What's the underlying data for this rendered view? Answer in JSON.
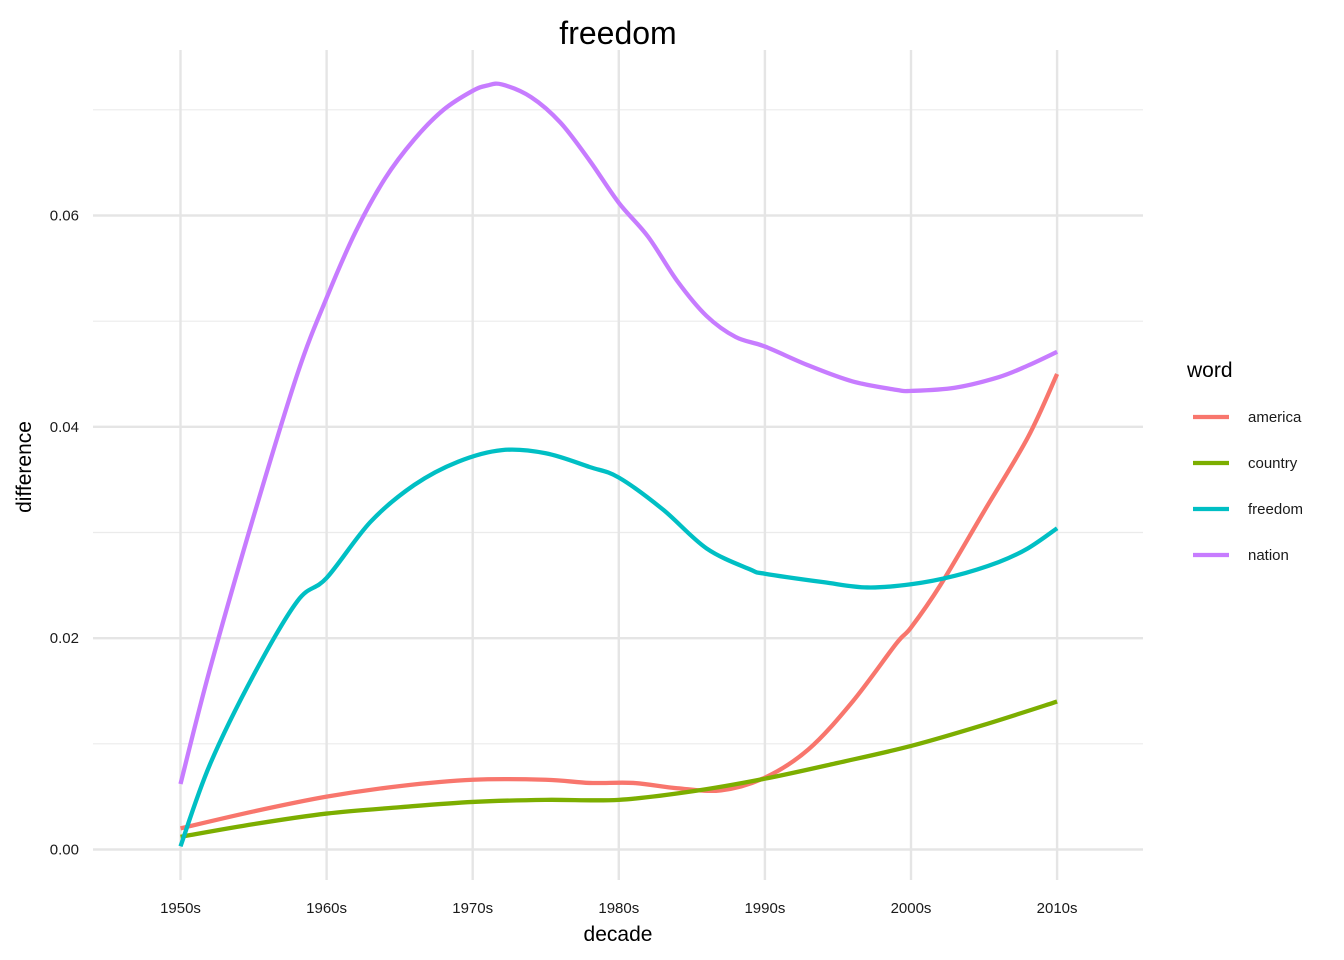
{
  "chart_data": {
    "type": "line",
    "title": "freedom",
    "xlabel": "decade",
    "ylabel": "difference",
    "categories": [
      "1950s",
      "1960s",
      "1970s",
      "1980s",
      "1990s",
      "2000s",
      "2010s"
    ],
    "y_ticks": [
      "0.00",
      "0.02",
      "0.04",
      "0.06"
    ],
    "ylim": [
      -0.0045,
      0.0765
    ],
    "grid": true,
    "legend": {
      "title": "word",
      "position": "right"
    },
    "series": [
      {
        "name": "america",
        "color": "#F8766D",
        "points": [
          [
            1950,
            0.002
          ],
          [
            1955,
            0.0036
          ],
          [
            1960,
            0.005
          ],
          [
            1965,
            0.006
          ],
          [
            1970,
            0.0066
          ],
          [
            1975,
            0.0066
          ],
          [
            1978,
            0.0063
          ],
          [
            1981,
            0.0063
          ],
          [
            1984,
            0.0058
          ],
          [
            1987,
            0.0056
          ],
          [
            1990,
            0.0068
          ],
          [
            1993,
            0.0095
          ],
          [
            1996,
            0.014
          ],
          [
            1999,
            0.0195
          ],
          [
            2000,
            0.021
          ],
          [
            2002,
            0.025
          ],
          [
            2005,
            0.032
          ],
          [
            2008,
            0.039
          ],
          [
            2010,
            0.045
          ]
        ]
      },
      {
        "name": "country",
        "color": "#7CAE00",
        "points": [
          [
            1950,
            0.0012
          ],
          [
            1955,
            0.0024
          ],
          [
            1960,
            0.0034
          ],
          [
            1965,
            0.004
          ],
          [
            1970,
            0.0045
          ],
          [
            1975,
            0.0047
          ],
          [
            1980,
            0.0047
          ],
          [
            1985,
            0.0055
          ],
          [
            1990,
            0.0067
          ],
          [
            1995,
            0.0082
          ],
          [
            2000,
            0.0098
          ],
          [
            2005,
            0.0118
          ],
          [
            2010,
            0.014
          ]
        ]
      },
      {
        "name": "freedom",
        "color": "#00BFC4",
        "points": [
          [
            1950,
            0.0003
          ],
          [
            1952,
            0.008
          ],
          [
            1955,
            0.0165
          ],
          [
            1958,
            0.0235
          ],
          [
            1960,
            0.0257
          ],
          [
            1963,
            0.031
          ],
          [
            1966,
            0.0345
          ],
          [
            1969,
            0.0367
          ],
          [
            1972,
            0.0378
          ],
          [
            1975,
            0.0375
          ],
          [
            1978,
            0.0362
          ],
          [
            1980,
            0.0352
          ],
          [
            1983,
            0.0322
          ],
          [
            1986,
            0.0285
          ],
          [
            1989,
            0.0265
          ],
          [
            1990,
            0.0261
          ],
          [
            1994,
            0.0253
          ],
          [
            1997,
            0.0248
          ],
          [
            2000,
            0.0251
          ],
          [
            2003,
            0.0259
          ],
          [
            2006,
            0.0272
          ],
          [
            2008,
            0.0285
          ],
          [
            2010,
            0.0304
          ]
        ]
      },
      {
        "name": "nation",
        "color": "#C77CFF",
        "points": [
          [
            1950,
            0.0062
          ],
          [
            1952,
            0.017
          ],
          [
            1955,
            0.0315
          ],
          [
            1958,
            0.045
          ],
          [
            1960,
            0.0522
          ],
          [
            1962,
            0.0585
          ],
          [
            1964,
            0.0635
          ],
          [
            1966,
            0.0672
          ],
          [
            1968,
            0.07
          ],
          [
            1970,
            0.0718
          ],
          [
            1971,
            0.0723
          ],
          [
            1972,
            0.0724
          ],
          [
            1974,
            0.0712
          ],
          [
            1976,
            0.0688
          ],
          [
            1978,
            0.0652
          ],
          [
            1980,
            0.0612
          ],
          [
            1982,
            0.058
          ],
          [
            1984,
            0.0538
          ],
          [
            1986,
            0.0505
          ],
          [
            1988,
            0.0485
          ],
          [
            1990,
            0.0476
          ],
          [
            1993,
            0.0458
          ],
          [
            1996,
            0.0443
          ],
          [
            1999,
            0.0435
          ],
          [
            2000,
            0.0434
          ],
          [
            2003,
            0.0437
          ],
          [
            2006,
            0.0447
          ],
          [
            2008,
            0.0458
          ],
          [
            2010,
            0.0471
          ]
        ]
      }
    ]
  }
}
